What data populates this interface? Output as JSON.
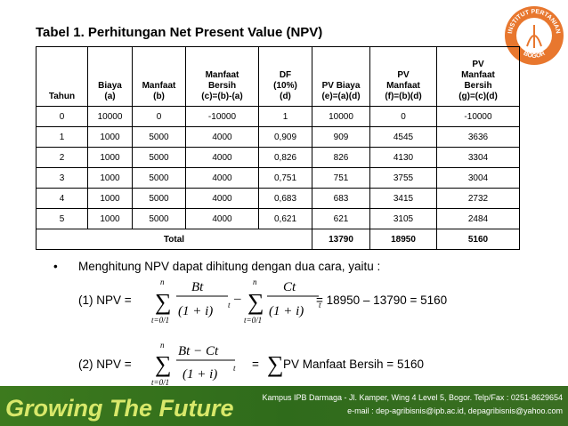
{
  "title": "Tabel  1. Perhitungan Net Present Value (NPV)",
  "logo": {
    "top": "INSTITUT PERTANIAN",
    "bottom": "BOGOR"
  },
  "table": {
    "headers": [
      [
        "Tahun"
      ],
      [
        "Biaya",
        "(a)"
      ],
      [
        "Manfaat",
        "(b)"
      ],
      [
        "Manfaat",
        "Bersih",
        "(c)=(b)-(a)"
      ],
      [
        "DF",
        "(10%)",
        "(d)"
      ],
      [
        "PV Biaya",
        "(e)=(a)(d)"
      ],
      [
        "PV",
        "Manfaat",
        "(f)=(b)(d)"
      ],
      [
        "PV",
        "Manfaat",
        "Bersih",
        "(g)=(c)(d)"
      ]
    ],
    "rows": [
      [
        0,
        10000,
        0,
        -10000,
        1,
        10000,
        0,
        -10000
      ],
      [
        1,
        1000,
        5000,
        4000,
        "0,909",
        909,
        4545,
        3636
      ],
      [
        2,
        1000,
        5000,
        4000,
        "0,826",
        826,
        4130,
        3304
      ],
      [
        3,
        1000,
        5000,
        4000,
        "0,751",
        751,
        3755,
        3004
      ],
      [
        4,
        1000,
        5000,
        4000,
        "0,683",
        683,
        3415,
        2732
      ],
      [
        5,
        1000,
        5000,
        4000,
        "0,621",
        621,
        3105,
        2484
      ]
    ],
    "total": {
      "label": "Total",
      "values": [
        13790,
        18950,
        5160
      ]
    }
  },
  "bullet": "Menghitung NPV dapat dihitung dengan dua cara, yaitu :",
  "formula": {
    "sigma": "∑",
    "n": "n",
    "lower": "t=0/1",
    "denominator": "(1 + i)",
    "exponent": "t",
    "f1_label": "(1) NPV =",
    "f1_num_b": "Bt",
    "f1_minus": "–",
    "f1_num_c": "Ct",
    "f1_result": "= 18950 – 13790 = 5160",
    "f2_label": "(2) NPV =",
    "f2_num": "Bt − Ct",
    "f2_equals": "=",
    "f2_result": "PV Manfaat Bersih = 5160"
  },
  "footer": {
    "slogan": "Growing The Future",
    "address": "Kampus IPB Darmaga - Jl. Kamper, Wing 4 Level 5, Bogor. Telp/Fax : 0251-8629654",
    "email": "e-mail : dep-agribisnis@ipb.ac.id, depagribisnis@yahoo.com"
  }
}
